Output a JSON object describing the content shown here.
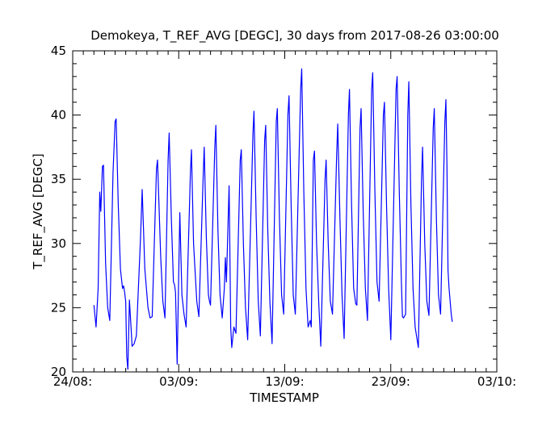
{
  "chart_data": {
    "type": "line",
    "title": "Demokeya, T_REF_AVG [DEGC], 30 days from  2017-08-26 03:00:00",
    "xlabel": "TIMESTAMP",
    "ylabel": "T_REF_AVG [DEGC]",
    "xlim": [
      0,
      40
    ],
    "ylim": [
      20,
      45
    ],
    "x_units": "days since 24/08",
    "x_ticks": [
      {
        "x": 0,
        "label": "24/08:"
      },
      {
        "x": 10,
        "label": "03/09:"
      },
      {
        "x": 20,
        "label": "13/09:"
      },
      {
        "x": 30,
        "label": "23/09:"
      },
      {
        "x": 40,
        "label": "03/10:"
      }
    ],
    "y_ticks": [
      20,
      25,
      30,
      35,
      40,
      45
    ],
    "line_color": "#0000ff",
    "series": [
      {
        "name": "T_REF_AVG",
        "points": [
          [
            2.0,
            25.2
          ],
          [
            2.2,
            23.5
          ],
          [
            2.4,
            26.5
          ],
          [
            2.55,
            34.0
          ],
          [
            2.65,
            32.5
          ],
          [
            2.8,
            36.0
          ],
          [
            2.9,
            36.1
          ],
          [
            3.1,
            28.5
          ],
          [
            3.3,
            25.0
          ],
          [
            3.5,
            24.0
          ],
          [
            3.8,
            35.5
          ],
          [
            4.0,
            39.5
          ],
          [
            4.1,
            39.7
          ],
          [
            4.3,
            33.0
          ],
          [
            4.5,
            28.0
          ],
          [
            4.7,
            26.5
          ],
          [
            4.8,
            26.7
          ],
          [
            4.9,
            26.2
          ],
          [
            5.0,
            25.5
          ],
          [
            5.1,
            21.2
          ],
          [
            5.2,
            20.2
          ],
          [
            5.35,
            25.6
          ],
          [
            5.5,
            23.5
          ],
          [
            5.6,
            22.0
          ],
          [
            5.8,
            22.2
          ],
          [
            6.0,
            22.8
          ],
          [
            6.4,
            30.5
          ],
          [
            6.55,
            34.2
          ],
          [
            6.8,
            28.0
          ],
          [
            7.1,
            25.0
          ],
          [
            7.3,
            24.2
          ],
          [
            7.5,
            24.3
          ],
          [
            7.9,
            35.8
          ],
          [
            8.0,
            36.5
          ],
          [
            8.3,
            29.0
          ],
          [
            8.5,
            25.5
          ],
          [
            8.7,
            24.2
          ],
          [
            9.0,
            36.5
          ],
          [
            9.1,
            38.6
          ],
          [
            9.3,
            32.0
          ],
          [
            9.5,
            27.0
          ],
          [
            9.6,
            26.8
          ],
          [
            9.7,
            26.2
          ],
          [
            9.85,
            20.6
          ],
          [
            10.1,
            32.4
          ],
          [
            10.3,
            26.0
          ],
          [
            10.5,
            24.5
          ],
          [
            10.7,
            23.5
          ],
          [
            11.1,
            35.5
          ],
          [
            11.2,
            37.3
          ],
          [
            11.4,
            30.0
          ],
          [
            11.7,
            25.5
          ],
          [
            11.9,
            24.3
          ],
          [
            12.3,
            35.0
          ],
          [
            12.4,
            37.5
          ],
          [
            12.6,
            30.5
          ],
          [
            12.8,
            26.0
          ],
          [
            12.9,
            25.5
          ],
          [
            13.0,
            25.2
          ],
          [
            13.4,
            37.5
          ],
          [
            13.5,
            39.2
          ],
          [
            13.7,
            31.0
          ],
          [
            13.9,
            26.0
          ],
          [
            14.1,
            24.2
          ],
          [
            14.3,
            26.5
          ],
          [
            14.4,
            28.9
          ],
          [
            14.5,
            27.0
          ],
          [
            14.75,
            34.5
          ],
          [
            14.8,
            31.0
          ],
          [
            14.9,
            23.5
          ],
          [
            15.0,
            21.9
          ],
          [
            15.2,
            23.5
          ],
          [
            15.4,
            23.0
          ],
          [
            15.8,
            36.5
          ],
          [
            15.9,
            37.3
          ],
          [
            16.1,
            30.0
          ],
          [
            16.3,
            25.0
          ],
          [
            16.5,
            22.5
          ],
          [
            17.0,
            38.5
          ],
          [
            17.1,
            40.3
          ],
          [
            17.3,
            32.0
          ],
          [
            17.5,
            25.5
          ],
          [
            17.7,
            22.8
          ],
          [
            18.1,
            38.0
          ],
          [
            18.2,
            39.2
          ],
          [
            18.4,
            31.0
          ],
          [
            18.6,
            25.5
          ],
          [
            18.8,
            22.2
          ],
          [
            19.2,
            39.5
          ],
          [
            19.3,
            40.5
          ],
          [
            19.5,
            32.0
          ],
          [
            19.7,
            26.0
          ],
          [
            19.9,
            24.5
          ],
          [
            20.3,
            40.0
          ],
          [
            20.4,
            41.5
          ],
          [
            20.6,
            33.0
          ],
          [
            20.8,
            26.0
          ],
          [
            21.0,
            24.5
          ],
          [
            21.5,
            42.0
          ],
          [
            21.6,
            43.6
          ],
          [
            21.8,
            34.0
          ],
          [
            22.0,
            26.5
          ],
          [
            22.2,
            23.5
          ],
          [
            22.4,
            24.0
          ],
          [
            22.5,
            23.5
          ],
          [
            22.7,
            36.5
          ],
          [
            22.8,
            37.2
          ],
          [
            23.0,
            30.0
          ],
          [
            23.2,
            25.5
          ],
          [
            23.4,
            22.0
          ],
          [
            23.8,
            35.0
          ],
          [
            23.9,
            36.5
          ],
          [
            24.1,
            30.0
          ],
          [
            24.3,
            25.5
          ],
          [
            24.5,
            24.5
          ],
          [
            24.9,
            37.0
          ],
          [
            25.0,
            39.3
          ],
          [
            25.2,
            32.0
          ],
          [
            25.4,
            26.0
          ],
          [
            25.6,
            22.6
          ],
          [
            26.0,
            40.0
          ],
          [
            26.1,
            42.0
          ],
          [
            26.3,
            33.0
          ],
          [
            26.5,
            26.5
          ],
          [
            26.7,
            25.3
          ],
          [
            26.8,
            25.2
          ],
          [
            27.1,
            39.0
          ],
          [
            27.2,
            40.5
          ],
          [
            27.4,
            32.5
          ],
          [
            27.6,
            26.5
          ],
          [
            27.8,
            24.0
          ],
          [
            28.2,
            42.0
          ],
          [
            28.3,
            43.3
          ],
          [
            28.5,
            34.0
          ],
          [
            28.7,
            27.0
          ],
          [
            28.9,
            25.5
          ],
          [
            29.3,
            40.0
          ],
          [
            29.4,
            41.0
          ],
          [
            29.6,
            33.0
          ],
          [
            29.8,
            26.5
          ],
          [
            30.0,
            22.5
          ],
          [
            30.5,
            42.0
          ],
          [
            30.6,
            43.0
          ],
          [
            30.8,
            34.0
          ],
          [
            31.0,
            27.0
          ],
          [
            31.1,
            24.3
          ],
          [
            31.2,
            24.2
          ],
          [
            31.4,
            24.5
          ],
          [
            31.6,
            40.0
          ],
          [
            31.7,
            42.6
          ],
          [
            31.9,
            33.0
          ],
          [
            32.1,
            26.5
          ],
          [
            32.3,
            23.5
          ],
          [
            32.6,
            21.9
          ],
          [
            32.9,
            35.0
          ],
          [
            33.0,
            37.5
          ],
          [
            33.2,
            30.0
          ],
          [
            33.4,
            25.5
          ],
          [
            33.6,
            24.4
          ],
          [
            34.0,
            39.0
          ],
          [
            34.1,
            40.5
          ],
          [
            34.3,
            32.0
          ],
          [
            34.5,
            26.0
          ],
          [
            34.7,
            24.5
          ],
          [
            35.1,
            39.5
          ],
          [
            35.2,
            41.2
          ],
          [
            35.3,
            36.0
          ],
          [
            35.4,
            27.9
          ],
          [
            35.5,
            26.5
          ],
          [
            35.7,
            24.5
          ],
          [
            35.8,
            23.9
          ]
        ]
      }
    ]
  }
}
